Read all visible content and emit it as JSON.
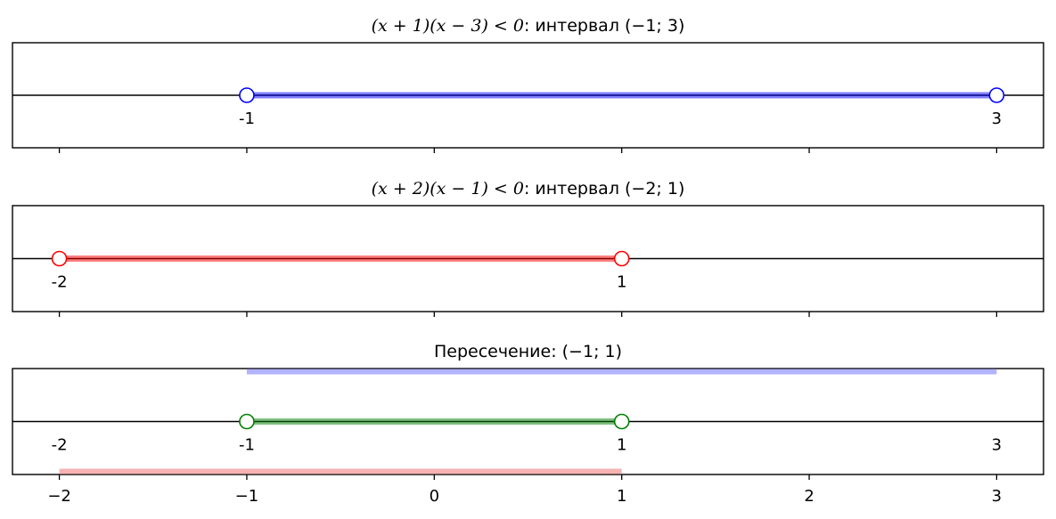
{
  "chart_data": [
    {
      "type": "number-line",
      "title_text": "(x + 1)(x − 3) < 0: интервал (−1; 3)",
      "title_expr": "(x + 1)(x − 3) < 0",
      "title_rest": ": интервал (−1; 3)",
      "xlim": [
        -2.25,
        3.25
      ],
      "intervals": [
        {
          "from": -1,
          "to": 3,
          "color": "#0000ff",
          "row": 0,
          "open_ends": true
        }
      ],
      "point_labels": [
        {
          "x": -1,
          "text": "-1"
        },
        {
          "x": 3,
          "text": "3"
        }
      ],
      "xticks": [
        -2,
        -1,
        0,
        1,
        2,
        3
      ],
      "show_tick_labels": false
    },
    {
      "type": "number-line",
      "title_text": "(x + 2)(x − 1) < 0: интервал (−2; 1)",
      "title_expr": "(x + 2)(x − 1) < 0",
      "title_rest": ": интервал (−2; 1)",
      "xlim": [
        -2.25,
        3.25
      ],
      "intervals": [
        {
          "from": -2,
          "to": 1,
          "color": "#ff0000",
          "row": 0,
          "open_ends": true
        }
      ],
      "point_labels": [
        {
          "x": -2,
          "text": "-2"
        },
        {
          "x": 1,
          "text": "1"
        }
      ],
      "xticks": [
        -2,
        -1,
        0,
        1,
        2,
        3
      ],
      "show_tick_labels": false
    },
    {
      "type": "number-line",
      "title_text": "Пересечение: (−1; 1)",
      "title_expr": "",
      "title_rest": "Пересечение: (−1; 1)",
      "xlim": [
        -2.25,
        3.25
      ],
      "intervals": [
        {
          "from": -1,
          "to": 3,
          "color": "#b3b3ff",
          "row": 1,
          "open_ends": false
        },
        {
          "from": -1,
          "to": 1,
          "color": "#008000",
          "row": 0,
          "open_ends": true
        },
        {
          "from": -2,
          "to": 1,
          "color": "#f7b3b3",
          "row": -1,
          "open_ends": false
        }
      ],
      "point_labels": [
        {
          "x": -2,
          "text": "-2"
        },
        {
          "x": -1,
          "text": "-1"
        },
        {
          "x": 1,
          "text": "1"
        },
        {
          "x": 3,
          "text": "3"
        }
      ],
      "xticks": [
        -2,
        -1,
        0,
        1,
        2,
        3
      ],
      "xticklabels": [
        "−2",
        "−1",
        "0",
        "1",
        "2",
        "3"
      ],
      "show_tick_labels": true
    }
  ]
}
